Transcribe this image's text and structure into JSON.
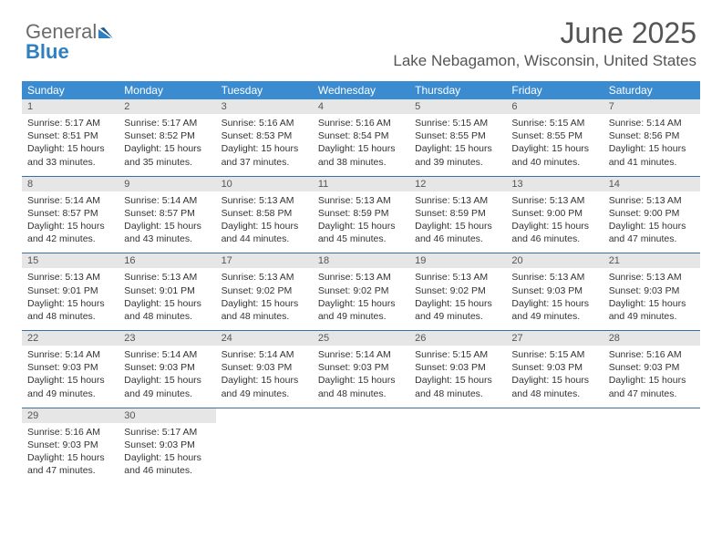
{
  "logo": {
    "general": "General",
    "blue": "Blue"
  },
  "header": {
    "month_title": "June 2025",
    "location": "Lake Nebagamon, Wisconsin, United States"
  },
  "colors": {
    "header_bg": "#3b8bd0",
    "header_text": "#ffffff",
    "daynum_bg": "#e6e6e6",
    "rule": "#3b6fa8",
    "body_text": "#333333",
    "title_text": "#555555",
    "logo_gray": "#6b6b6b",
    "logo_blue": "#2f7fc1"
  },
  "weekdays": [
    "Sunday",
    "Monday",
    "Tuesday",
    "Wednesday",
    "Thursday",
    "Friday",
    "Saturday"
  ],
  "weeks": [
    [
      {
        "n": "1",
        "sr": "5:17 AM",
        "ss": "8:51 PM",
        "dl": "15 hours and 33 minutes."
      },
      {
        "n": "2",
        "sr": "5:17 AM",
        "ss": "8:52 PM",
        "dl": "15 hours and 35 minutes."
      },
      {
        "n": "3",
        "sr": "5:16 AM",
        "ss": "8:53 PM",
        "dl": "15 hours and 37 minutes."
      },
      {
        "n": "4",
        "sr": "5:16 AM",
        "ss": "8:54 PM",
        "dl": "15 hours and 38 minutes."
      },
      {
        "n": "5",
        "sr": "5:15 AM",
        "ss": "8:55 PM",
        "dl": "15 hours and 39 minutes."
      },
      {
        "n": "6",
        "sr": "5:15 AM",
        "ss": "8:55 PM",
        "dl": "15 hours and 40 minutes."
      },
      {
        "n": "7",
        "sr": "5:14 AM",
        "ss": "8:56 PM",
        "dl": "15 hours and 41 minutes."
      }
    ],
    [
      {
        "n": "8",
        "sr": "5:14 AM",
        "ss": "8:57 PM",
        "dl": "15 hours and 42 minutes."
      },
      {
        "n": "9",
        "sr": "5:14 AM",
        "ss": "8:57 PM",
        "dl": "15 hours and 43 minutes."
      },
      {
        "n": "10",
        "sr": "5:13 AM",
        "ss": "8:58 PM",
        "dl": "15 hours and 44 minutes."
      },
      {
        "n": "11",
        "sr": "5:13 AM",
        "ss": "8:59 PM",
        "dl": "15 hours and 45 minutes."
      },
      {
        "n": "12",
        "sr": "5:13 AM",
        "ss": "8:59 PM",
        "dl": "15 hours and 46 minutes."
      },
      {
        "n": "13",
        "sr": "5:13 AM",
        "ss": "9:00 PM",
        "dl": "15 hours and 46 minutes."
      },
      {
        "n": "14",
        "sr": "5:13 AM",
        "ss": "9:00 PM",
        "dl": "15 hours and 47 minutes."
      }
    ],
    [
      {
        "n": "15",
        "sr": "5:13 AM",
        "ss": "9:01 PM",
        "dl": "15 hours and 48 minutes."
      },
      {
        "n": "16",
        "sr": "5:13 AM",
        "ss": "9:01 PM",
        "dl": "15 hours and 48 minutes."
      },
      {
        "n": "17",
        "sr": "5:13 AM",
        "ss": "9:02 PM",
        "dl": "15 hours and 48 minutes."
      },
      {
        "n": "18",
        "sr": "5:13 AM",
        "ss": "9:02 PM",
        "dl": "15 hours and 49 minutes."
      },
      {
        "n": "19",
        "sr": "5:13 AM",
        "ss": "9:02 PM",
        "dl": "15 hours and 49 minutes."
      },
      {
        "n": "20",
        "sr": "5:13 AM",
        "ss": "9:03 PM",
        "dl": "15 hours and 49 minutes."
      },
      {
        "n": "21",
        "sr": "5:13 AM",
        "ss": "9:03 PM",
        "dl": "15 hours and 49 minutes."
      }
    ],
    [
      {
        "n": "22",
        "sr": "5:14 AM",
        "ss": "9:03 PM",
        "dl": "15 hours and 49 minutes."
      },
      {
        "n": "23",
        "sr": "5:14 AM",
        "ss": "9:03 PM",
        "dl": "15 hours and 49 minutes."
      },
      {
        "n": "24",
        "sr": "5:14 AM",
        "ss": "9:03 PM",
        "dl": "15 hours and 49 minutes."
      },
      {
        "n": "25",
        "sr": "5:14 AM",
        "ss": "9:03 PM",
        "dl": "15 hours and 48 minutes."
      },
      {
        "n": "26",
        "sr": "5:15 AM",
        "ss": "9:03 PM",
        "dl": "15 hours and 48 minutes."
      },
      {
        "n": "27",
        "sr": "5:15 AM",
        "ss": "9:03 PM",
        "dl": "15 hours and 48 minutes."
      },
      {
        "n": "28",
        "sr": "5:16 AM",
        "ss": "9:03 PM",
        "dl": "15 hours and 47 minutes."
      }
    ],
    [
      {
        "n": "29",
        "sr": "5:16 AM",
        "ss": "9:03 PM",
        "dl": "15 hours and 47 minutes."
      },
      {
        "n": "30",
        "sr": "5:17 AM",
        "ss": "9:03 PM",
        "dl": "15 hours and 46 minutes."
      },
      null,
      null,
      null,
      null,
      null
    ]
  ],
  "labels": {
    "sunrise": "Sunrise:",
    "sunset": "Sunset:",
    "daylight": "Daylight:"
  }
}
